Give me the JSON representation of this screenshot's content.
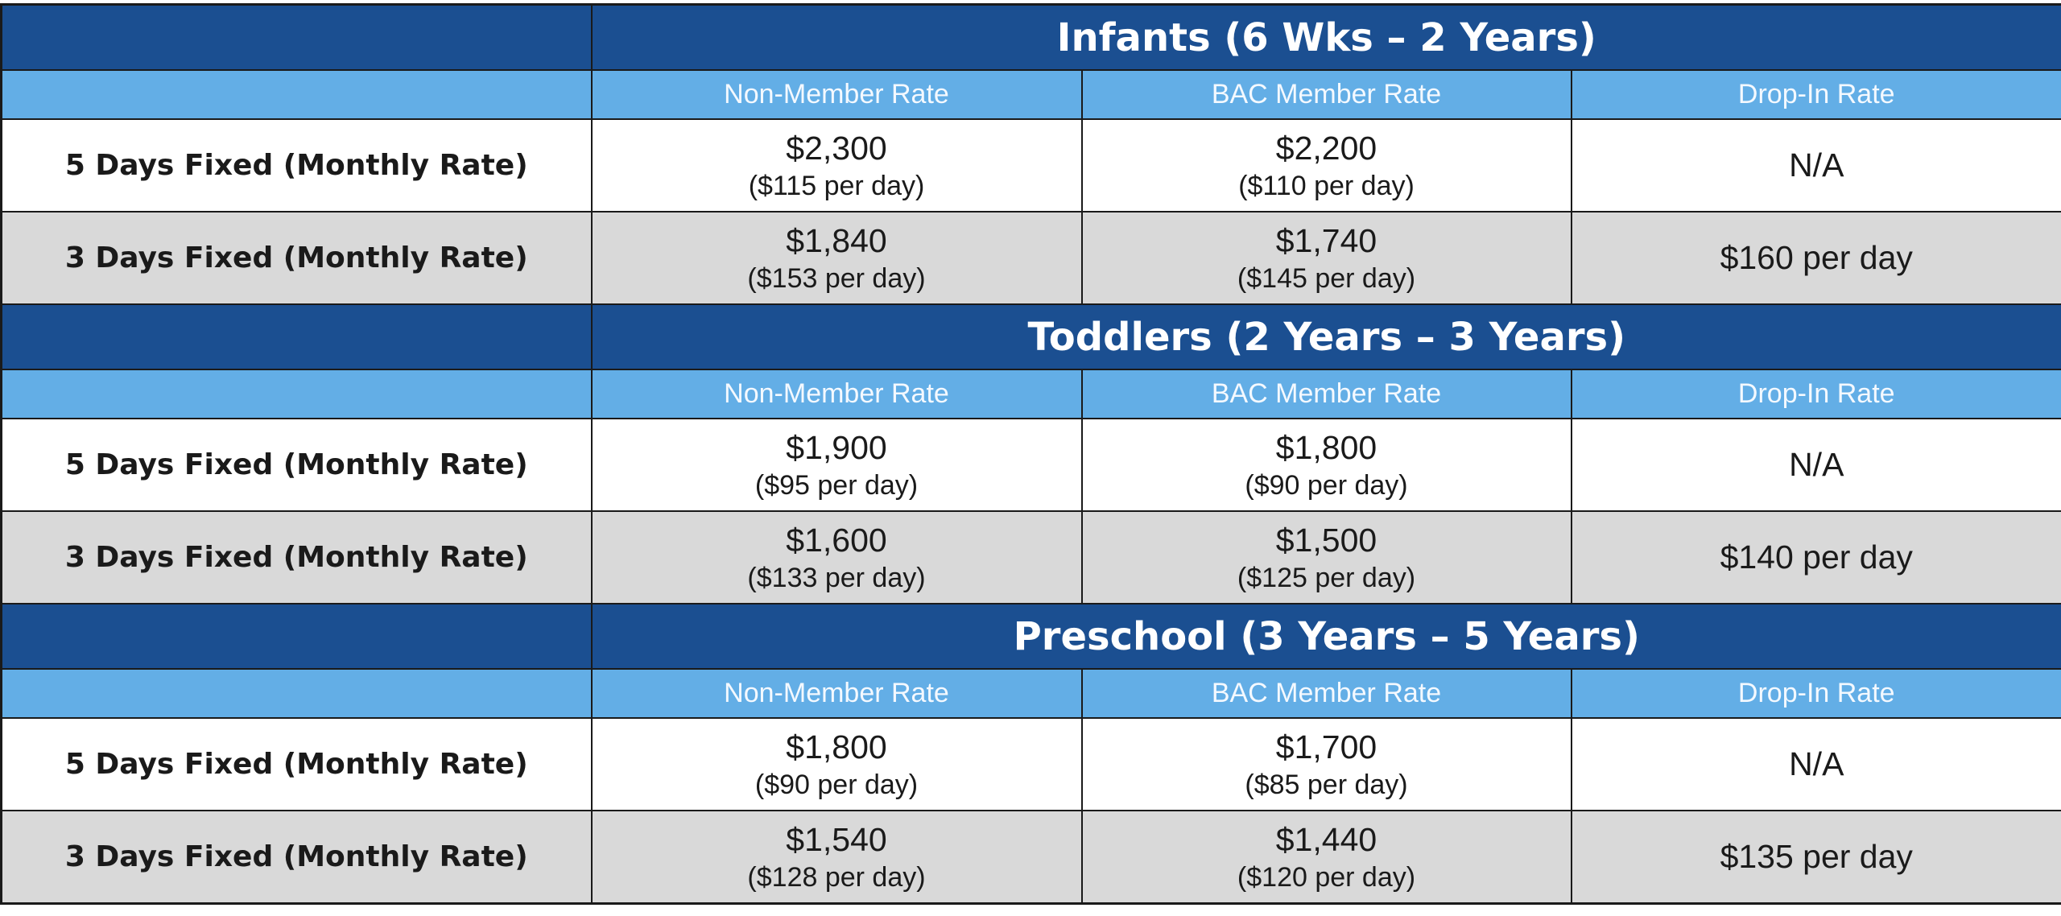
{
  "colors": {
    "section_bg": "#1b4f91",
    "header_bg": "#63aee6",
    "row_white": "#ffffff",
    "row_gray": "#d9d9d9"
  },
  "sections": [
    {
      "title": "Infants (6 Wks – 2 Years)",
      "headers": [
        "Non-Member Rate",
        "BAC Member Rate",
        "Drop-In Rate"
      ],
      "rows": [
        {
          "label": "5 Days Fixed (Monthly Rate)",
          "non_member": {
            "price": "$2,300",
            "daily": "($115 per day)"
          },
          "member": {
            "price": "$2,200",
            "daily": "($110 per day)"
          },
          "drop_in": "N/A"
        },
        {
          "label": "3 Days Fixed (Monthly Rate)",
          "non_member": {
            "price": "$1,840",
            "daily": "($153 per day)"
          },
          "member": {
            "price": "$1,740",
            "daily": "($145 per day)"
          },
          "drop_in": "$160 per day"
        }
      ]
    },
    {
      "title": "Toddlers (2 Years – 3 Years)",
      "headers": [
        "Non-Member Rate",
        "BAC Member Rate",
        "Drop-In Rate"
      ],
      "rows": [
        {
          "label": "5 Days Fixed (Monthly Rate)",
          "non_member": {
            "price": "$1,900",
            "daily": "($95 per day)"
          },
          "member": {
            "price": "$1,800",
            "daily": "($90 per day)"
          },
          "drop_in": "N/A"
        },
        {
          "label": "3 Days Fixed (Monthly Rate)",
          "non_member": {
            "price": "$1,600",
            "daily": "($133 per day)"
          },
          "member": {
            "price": "$1,500",
            "daily": "($125 per day)"
          },
          "drop_in": "$140 per day"
        }
      ]
    },
    {
      "title": "Preschool (3 Years – 5 Years)",
      "headers": [
        "Non-Member Rate",
        "BAC Member Rate",
        "Drop-In Rate"
      ],
      "rows": [
        {
          "label": "5 Days Fixed (Monthly Rate)",
          "non_member": {
            "price": "$1,800",
            "daily": "($90 per day)"
          },
          "member": {
            "price": "$1,700",
            "daily": "($85 per day)"
          },
          "drop_in": "N/A"
        },
        {
          "label": "3 Days Fixed (Monthly Rate)",
          "non_member": {
            "price": "$1,540",
            "daily": "($128 per day)"
          },
          "member": {
            "price": "$1,440",
            "daily": "($120 per day)"
          },
          "drop_in": "$135 per day"
        }
      ]
    }
  ]
}
